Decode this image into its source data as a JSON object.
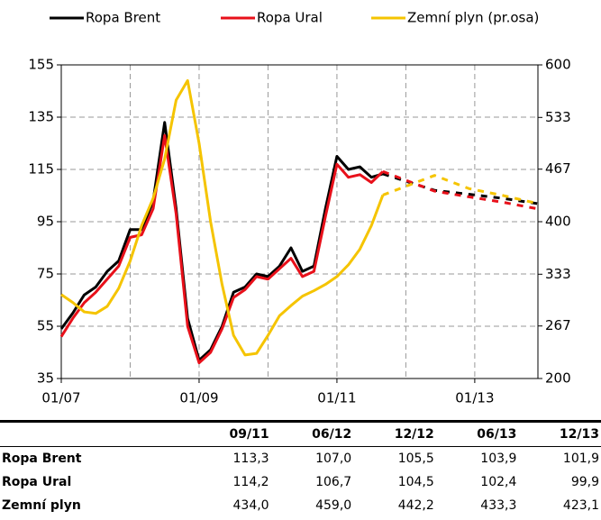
{
  "chart_data": {
    "type": "line",
    "x": [
      0,
      2,
      4,
      6,
      8,
      10,
      12,
      14,
      16,
      18,
      20,
      22,
      24,
      26,
      28,
      30,
      32,
      34,
      36,
      38,
      40,
      42,
      44,
      46,
      48,
      50,
      52,
      54,
      56,
      65,
      71,
      77,
      83
    ],
    "xlim": [
      0,
      83
    ],
    "xticks": [
      {
        "value": 0,
        "label": "01/07"
      },
      {
        "value": 24,
        "label": "01/09"
      },
      {
        "value": 48,
        "label": "01/11"
      },
      {
        "value": 72,
        "label": "01/13"
      }
    ],
    "xgrid": [
      12,
      24,
      36,
      48,
      60,
      72
    ],
    "ylim": [
      35,
      155
    ],
    "yticks": [
      35,
      55,
      75,
      95,
      115,
      135,
      155
    ],
    "y2lim": [
      200,
      600
    ],
    "y2ticks": [
      200,
      267,
      333,
      400,
      467,
      533,
      600
    ],
    "grid": true,
    "legend": "top",
    "dashed_from": 56,
    "series": [
      {
        "name": "Ropa Brent",
        "color": "#000000",
        "values": [
          54,
          60,
          67,
          70,
          76,
          80,
          92,
          92,
          103,
          133,
          100,
          58,
          42,
          46,
          55,
          68,
          70,
          75,
          74,
          78,
          85,
          76,
          78,
          100,
          120,
          115,
          116,
          112,
          113.3,
          107.0,
          105.5,
          103.9,
          101.9
        ]
      },
      {
        "name": "Ropa Ural",
        "color": "#e8101a",
        "values": [
          51,
          58,
          64,
          68,
          73,
          78,
          89,
          90,
          100,
          128,
          98,
          55,
          41,
          45,
          54,
          66,
          69,
          74,
          73,
          77,
          81,
          74,
          76,
          97,
          117,
          112,
          113,
          110,
          114.2,
          106.7,
          104.5,
          102.4,
          99.9
        ]
      },
      {
        "name": "Zemní plyn (pr.osa)",
        "color": "#f5c400",
        "axis": "y2",
        "values": [
          307,
          297,
          285,
          283,
          292,
          315,
          350,
          395,
          430,
          480,
          555,
          580,
          500,
          400,
          320,
          255,
          230,
          232,
          255,
          280,
          293,
          305,
          312,
          320,
          330,
          345,
          365,
          395,
          434.0,
          459.0,
          442.2,
          433.3,
          423.1
        ]
      }
    ]
  },
  "table": {
    "header": [
      "09/11",
      "06/12",
      "12/12",
      "06/13",
      "12/13"
    ],
    "rows": [
      [
        "Ropa Brent",
        "113,3",
        "107,0",
        "105,5",
        "103,9",
        "101,9"
      ],
      [
        "Ropa Ural",
        "114,2",
        "106,7",
        "104,5",
        "102,4",
        "99,9"
      ],
      [
        "Zemní plyn",
        "434,0",
        "459,0",
        "442,2",
        "433,3",
        "423,1"
      ]
    ]
  }
}
